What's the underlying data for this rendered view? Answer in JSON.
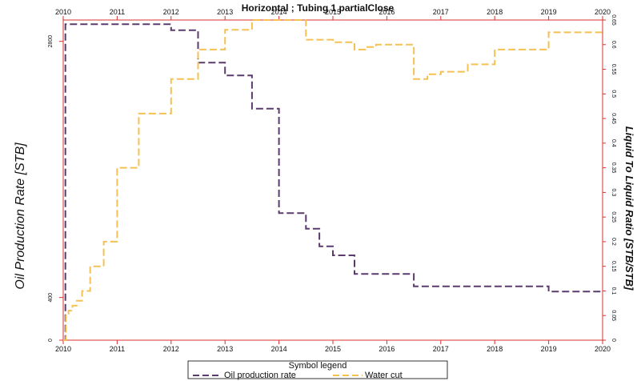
{
  "chart_data": {
    "type": "line",
    "title": "Horizontal ; Tubing 1 partialClose",
    "xlabel": "",
    "ylabel": "Oil Production Rate [STB]",
    "y2label": "Liquid To Liquid Ratio [STB/STB]",
    "xlim": [
      2010,
      2020
    ],
    "ylim": [
      0,
      3000
    ],
    "y2lim": [
      0,
      0.65
    ],
    "x_ticks": [
      "2010",
      "2011",
      "2012",
      "2013",
      "2014",
      "2015",
      "2016",
      "2017",
      "2018",
      "2019",
      "2020"
    ],
    "y_ticks": [
      "0",
      "400",
      "2800"
    ],
    "y2_ticks": [
      "0",
      "0.05",
      "0.1",
      "0.15",
      "0.2",
      "0.25",
      "0.3",
      "0.35",
      "0.4",
      "0.45",
      "0.5",
      "0.55",
      "0.6",
      "0.65"
    ],
    "legend_title": "Symbol legend",
    "legend_position": "bottom-center",
    "series": [
      {
        "name": "Oil production rate",
        "axis": "left",
        "color": "#5b3a6e",
        "step": true,
        "x": [
          2010,
          2010.04,
          2012.0,
          2012.5,
          2013.0,
          2013.5,
          2014.0,
          2014.5,
          2014.75,
          2015.0,
          2015.4,
          2016.5,
          2019.0,
          2020.0
        ],
        "y": [
          0,
          2960,
          2905,
          2600,
          2480,
          2170,
          1190,
          1045,
          880,
          795,
          620,
          505,
          455,
          455
        ]
      },
      {
        "name": "Water cut",
        "axis": "right",
        "color": "#f5c154",
        "step": true,
        "x": [
          2010,
          2010.05,
          2010.1,
          2010.17,
          2010.25,
          2010.35,
          2010.5,
          2010.75,
          2011.0,
          2011.4,
          2012.0,
          2012.5,
          2013.0,
          2013.5,
          2014.5,
          2015.0,
          2015.4,
          2015.6,
          2015.8,
          2016.5,
          2016.75,
          2017.0,
          2017.5,
          2018.0,
          2019.0,
          2020.0
        ],
        "y": [
          0,
          0.05,
          0.06,
          0.07,
          0.08,
          0.1,
          0.15,
          0.2,
          0.35,
          0.46,
          0.53,
          0.59,
          0.63,
          0.65,
          0.61,
          0.605,
          0.59,
          0.595,
          0.6,
          0.53,
          0.54,
          0.545,
          0.56,
          0.59,
          0.625,
          0.625
        ]
      }
    ]
  },
  "colors": {
    "axis_red": "#d9302c",
    "oil": "#5b3a6e",
    "water": "#f5c154"
  }
}
